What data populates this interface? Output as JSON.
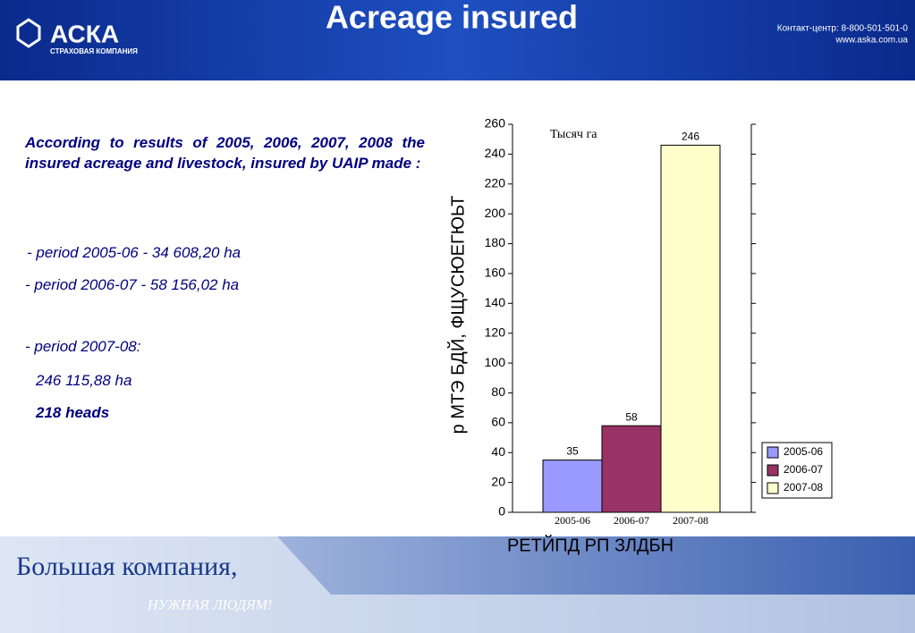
{
  "header": {
    "title": "Acreage insured",
    "logo": "АСКА",
    "logo_sub": "СТРАХОВАЯ КОМПАНИЯ",
    "contact": "Контакт-центр:  8-800-501-501-0",
    "site": "www.aska.com.ua"
  },
  "text": {
    "intro": "According to results of 2005, 2006, 2007, 2008 the insured acreage and livestock, insured by UAIP made :",
    "items": [
      " - period 2005-06 - 34 608,20 ha",
      "- period 2006-07 - 58 156,02 ha",
      "-  period 2007-08:",
      "246 115,88 ha",
      "218 heads"
    ]
  },
  "footer": {
    "slogan": "Большая компания,",
    "slogan2": "НУЖНАЯ ЛЮДЯМ!"
  },
  "chart_data": {
    "type": "bar",
    "annotation": "Тысяч га",
    "y_label": "р МТЭ БДЙ, ФЩУСЮЕГЮЬТ",
    "x_label": "РЕТЙПД  РП ЗЛДБН",
    "categories": [
      "2005-06",
      "2006-07",
      "2007-08"
    ],
    "values": [
      35,
      58,
      246
    ],
    "colors": [
      "#9999ff",
      "#993366",
      "#ffffcc"
    ],
    "ylim": [
      0,
      260
    ],
    "yticks": [
      0,
      20,
      40,
      60,
      80,
      100,
      120,
      140,
      160,
      180,
      200,
      220,
      240,
      260
    ],
    "legend": "right"
  }
}
